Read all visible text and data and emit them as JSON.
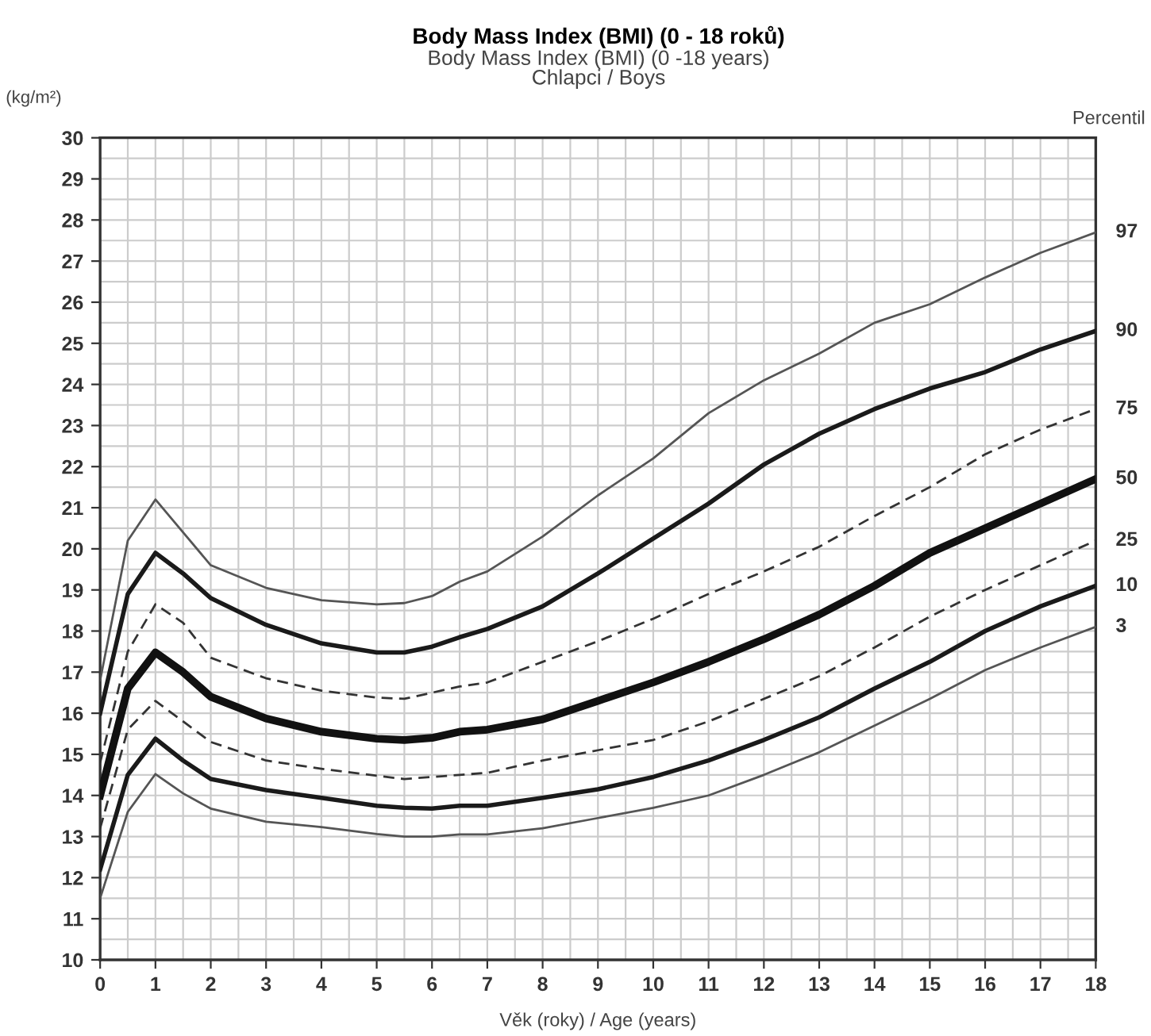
{
  "chart_data": {
    "type": "line",
    "title": "Body Mass Index (BMI) (0 - 18 roků)",
    "subtitle": "Body Mass Index (BMI) (0 -18 years)\nChlapci / Boys",
    "xlabel": "Věk (roky) / Age (years)",
    "ylabel": "(kg/m²)",
    "legend_title": "Percentil",
    "x": [
      0,
      0.5,
      1,
      1.5,
      2,
      3,
      4,
      5,
      5.5,
      6,
      6.5,
      7,
      8,
      9,
      10,
      11,
      12,
      13,
      14,
      15,
      16,
      17,
      18
    ],
    "series": [
      {
        "name": "97",
        "color": "#555555",
        "line_style": "solid",
        "values": [
          16.8,
          20.2,
          21.2,
          20.4,
          19.6,
          19.05,
          18.75,
          18.65,
          18.68,
          18.85,
          19.2,
          19.45,
          20.3,
          21.3,
          22.2,
          23.3,
          24.1,
          24.75,
          25.5,
          25.95,
          26.6,
          27.2,
          27.7
        ]
      },
      {
        "name": "90",
        "color": "#1a1a1a",
        "line_style": "solid",
        "values": [
          16.0,
          18.9,
          19.9,
          19.4,
          18.8,
          18.15,
          17.7,
          17.48,
          17.48,
          17.62,
          17.85,
          18.05,
          18.6,
          19.4,
          20.25,
          21.1,
          22.05,
          22.8,
          23.4,
          23.9,
          24.3,
          24.85,
          25.3
        ]
      },
      {
        "name": "75",
        "color": "#333333",
        "line_style": "dashed",
        "values": [
          14.8,
          17.5,
          18.65,
          18.2,
          17.35,
          16.85,
          16.55,
          16.38,
          16.35,
          16.5,
          16.65,
          16.75,
          17.25,
          17.75,
          18.3,
          18.9,
          19.45,
          20.05,
          20.8,
          21.5,
          22.3,
          22.9,
          23.4
        ]
      },
      {
        "name": "50",
        "color": "#111111",
        "line_style": "solid",
        "values": [
          14.0,
          16.6,
          17.48,
          17.0,
          16.4,
          15.87,
          15.55,
          15.38,
          15.35,
          15.4,
          15.55,
          15.6,
          15.85,
          16.3,
          16.75,
          17.25,
          17.8,
          18.4,
          19.1,
          19.9,
          20.5,
          21.1,
          21.7
        ]
      },
      {
        "name": "25",
        "color": "#333333",
        "line_style": "dashed",
        "values": [
          13.2,
          15.6,
          16.3,
          15.8,
          15.3,
          14.85,
          14.65,
          14.48,
          14.4,
          14.45,
          14.5,
          14.55,
          14.85,
          15.1,
          15.35,
          15.8,
          16.35,
          16.9,
          17.6,
          18.35,
          19.0,
          19.6,
          20.2
        ]
      },
      {
        "name": "10",
        "color": "#1a1a1a",
        "line_style": "solid",
        "values": [
          12.2,
          14.5,
          15.38,
          14.85,
          14.4,
          14.13,
          13.94,
          13.75,
          13.7,
          13.68,
          13.75,
          13.75,
          13.94,
          14.15,
          14.45,
          14.85,
          15.35,
          15.9,
          16.6,
          17.25,
          18.0,
          18.6,
          19.1
        ]
      },
      {
        "name": "3",
        "color": "#555555",
        "line_style": "solid",
        "values": [
          11.5,
          13.6,
          14.52,
          14.05,
          13.68,
          13.36,
          13.23,
          13.06,
          13.0,
          13.0,
          13.05,
          13.05,
          13.2,
          13.45,
          13.7,
          14.0,
          14.5,
          15.05,
          15.7,
          16.35,
          17.05,
          17.6,
          18.1
        ]
      }
    ],
    "xlim": [
      0,
      18
    ],
    "xticks": [
      0,
      1,
      2,
      3,
      4,
      5,
      6,
      7,
      8,
      9,
      10,
      11,
      12,
      13,
      14,
      15,
      16,
      17,
      18
    ],
    "ylim": [
      10,
      30
    ],
    "yticks": [
      10,
      11,
      12,
      13,
      14,
      15,
      16,
      17,
      18,
      19,
      20,
      21,
      22,
      23,
      24,
      25,
      26,
      27,
      28,
      29,
      30
    ],
    "grid": true,
    "legend": false,
    "marker": "none"
  }
}
